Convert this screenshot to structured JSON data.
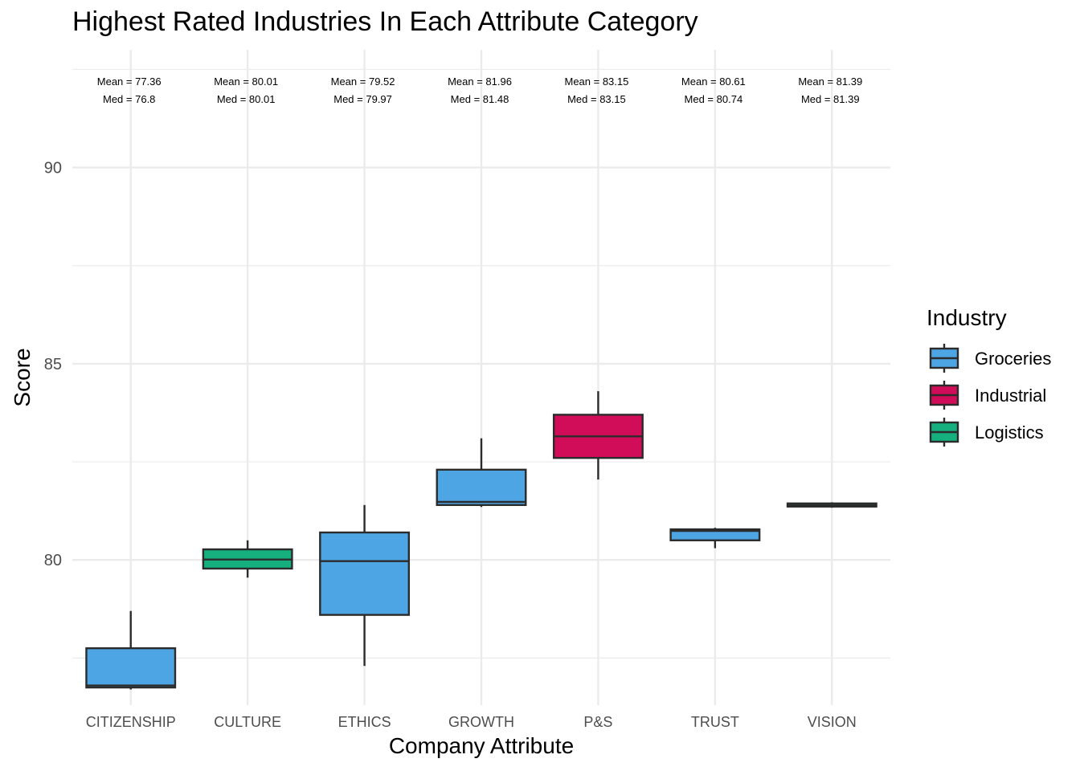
{
  "chart_data": {
    "type": "boxplot",
    "title": "Highest Rated Industries In Each Attribute Category",
    "xlabel": "Company Attribute",
    "ylabel": "Score",
    "ylim": [
      76.3,
      93.0
    ],
    "yticks": [
      80,
      85,
      90
    ],
    "grid": true,
    "legend": {
      "title": "Industry",
      "placement": "right",
      "entries": [
        {
          "name": "Groceries",
          "color": "#4ea5e4"
        },
        {
          "name": "Industrial",
          "color": "#d10c58"
        },
        {
          "name": "Logistics",
          "color": "#15b07e"
        }
      ]
    },
    "categories": [
      {
        "label": "CITIZENSHIP",
        "industry": "Groceries",
        "color": "#4ea5e4",
        "min": 76.7,
        "q1": 76.75,
        "median": 76.8,
        "q3": 77.75,
        "max": 78.7,
        "mean_label": "Mean = 77.36",
        "med_label": "Med = 76.8"
      },
      {
        "label": "CULTURE",
        "industry": "Logistics",
        "color": "#15b07e",
        "min": 79.55,
        "q1": 79.78,
        "median": 80.01,
        "q3": 80.27,
        "max": 80.5,
        "mean_label": "Mean = 80.01",
        "med_label": "Med = 80.01"
      },
      {
        "label": "ETHICS",
        "industry": "Groceries",
        "color": "#4ea5e4",
        "min": 77.3,
        "q1": 78.6,
        "median": 79.97,
        "q3": 80.7,
        "max": 81.4,
        "mean_label": "Mean = 79.52",
        "med_label": "Med = 79.97"
      },
      {
        "label": "GROWTH",
        "industry": "Groceries",
        "color": "#4ea5e4",
        "min": 81.35,
        "q1": 81.4,
        "median": 81.48,
        "q3": 82.3,
        "max": 83.1,
        "mean_label": "Mean = 81.96",
        "med_label": "Med = 81.48"
      },
      {
        "label": "P&S",
        "industry": "Industrial",
        "color": "#d10c58",
        "min": 82.05,
        "q1": 82.6,
        "median": 83.15,
        "q3": 83.7,
        "max": 84.3,
        "mean_label": "Mean = 83.15",
        "med_label": "Med = 83.15"
      },
      {
        "label": "TRUST",
        "industry": "Groceries",
        "color": "#4ea5e4",
        "min": 80.3,
        "q1": 80.5,
        "median": 80.74,
        "q3": 80.78,
        "max": 80.82,
        "mean_label": "Mean = 80.61",
        "med_label": "Med = 80.74"
      },
      {
        "label": "VISION",
        "industry": "Logistics",
        "color": "#15b07e",
        "min": 81.33,
        "q1": 81.36,
        "median": 81.39,
        "q3": 81.44,
        "max": 81.47,
        "mean_label": "Mean = 81.39",
        "med_label": "Med = 81.39"
      }
    ]
  }
}
